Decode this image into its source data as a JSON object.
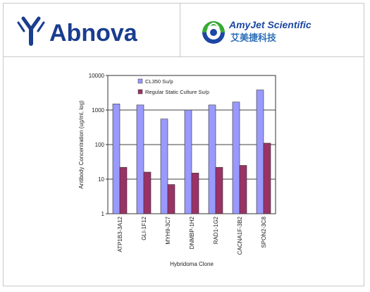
{
  "header": {
    "left_logo_text": "Abnova",
    "right_logo_en": "AmyJet Scientific",
    "right_logo_cn": "艾美捷科技"
  },
  "colors": {
    "abnova_blue": "#1a3d8f",
    "amyjet_green": "#39a935",
    "amyjet_blue": "#1c47a3",
    "series1": "#9999ff",
    "series2": "#993366"
  },
  "chart_data": {
    "type": "bar",
    "title": "",
    "xlabel": "Hybridoma Clone",
    "ylabel": "Antibody Concentration (ug/ml, log)",
    "yscale": "log",
    "ylim": [
      1,
      10000
    ],
    "yticks": [
      "1",
      "10",
      "100",
      "1000",
      "10000"
    ],
    "grid": "y-major",
    "legend_position": "top-left",
    "categories": [
      "ATP1B3-3A12",
      "GLI-1F12",
      "MYH9-3C7",
      "DNMBP-1H2",
      "RAD1-1G2",
      "CACNA1F-3B2",
      "SPON2-3C8"
    ],
    "series": [
      {
        "name": "CL350 Su/p",
        "color": "#9999ff",
        "values": [
          1500,
          1400,
          550,
          1000,
          1400,
          1700,
          3800
        ]
      },
      {
        "name": "Regular Static Culture Su/p",
        "color": "#993366",
        "values": [
          22,
          16,
          7,
          15,
          22,
          25,
          110
        ]
      }
    ]
  }
}
